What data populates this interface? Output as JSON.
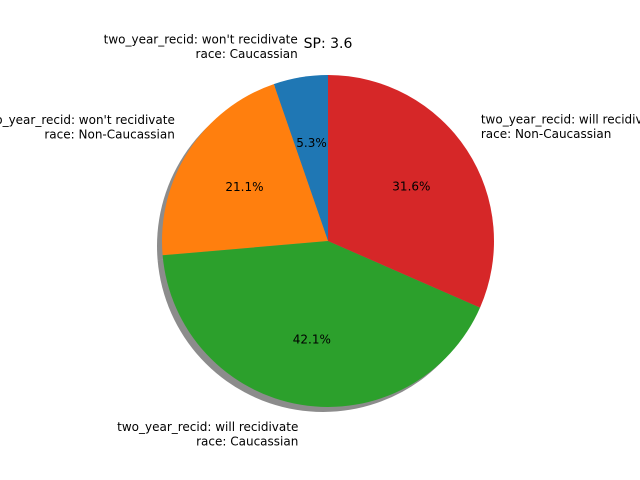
{
  "chart_data": {
    "type": "pie",
    "title": "SP: 3.6",
    "start_angle_deg": 90,
    "direction": "counterclockwise",
    "shadow": true,
    "slices": [
      {
        "label": [
          "two_year_recid: won't recidivate",
          "race: Caucassian"
        ],
        "value": 5.3,
        "pct_label": "5.3%",
        "color": "#1f77b4"
      },
      {
        "label": [
          "two_year_recid: won't recidivate",
          "race: Non-Caucassian"
        ],
        "value": 21.1,
        "pct_label": "21.1%",
        "color": "#ff7f0e"
      },
      {
        "label": [
          "two_year_recid: will recidivate",
          "race: Caucassian"
        ],
        "value": 42.1,
        "pct_label": "42.1%",
        "color": "#2ca02c"
      },
      {
        "label": [
          "two_year_recid: will recidivate",
          "race: Non-Caucassian"
        ],
        "value": 31.6,
        "pct_label": "31.6%",
        "color": "#d62728"
      }
    ]
  }
}
